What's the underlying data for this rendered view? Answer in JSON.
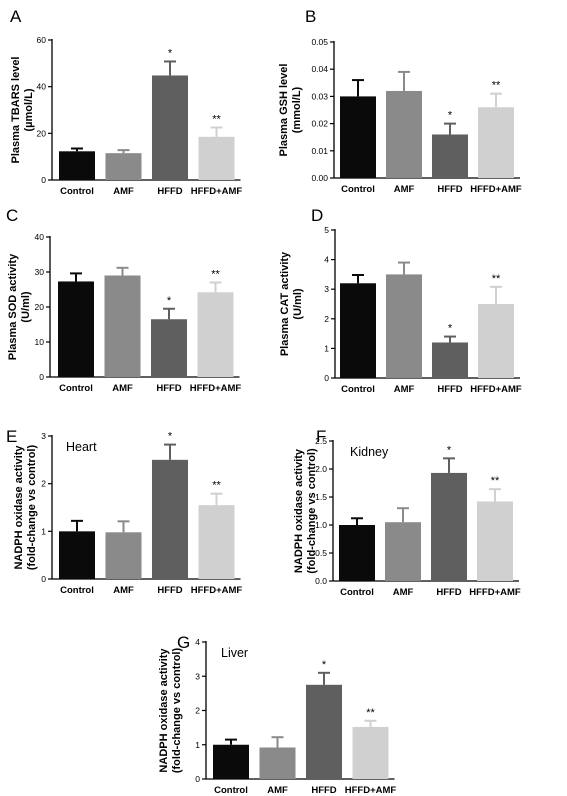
{
  "colors": {
    "Control": "#0a0a0a",
    "AMF": "#8a8a8a",
    "HFFD": "#5f5f5f",
    "HFFD+AMF": "#d0d0d0",
    "axis": "#000000"
  },
  "chart_data": [
    {
      "panel": "A",
      "type": "bar",
      "categories": [
        "Control",
        "AMF",
        "HFFD",
        "HFFD+AMF"
      ],
      "values": [
        12.3,
        11.5,
        44.8,
        18.5
      ],
      "errors": [
        1.2,
        1.3,
        6.0,
        4.0
      ],
      "significance": [
        "",
        "",
        "*",
        "**"
      ],
      "ylabel_lines": [
        "Plasma TBARS level",
        "(µmol/L)"
      ],
      "ylim": [
        0,
        60
      ],
      "yticks": [
        0,
        20,
        40,
        60
      ],
      "ytick_labels": [
        "0",
        "20",
        "40",
        "60"
      ],
      "inset_label": ""
    },
    {
      "panel": "B",
      "type": "bar",
      "categories": [
        "Control",
        "AMF",
        "HFFD",
        "HFFD+AMF"
      ],
      "values": [
        0.03,
        0.032,
        0.016,
        0.026
      ],
      "errors": [
        0.006,
        0.007,
        0.004,
        0.005
      ],
      "significance": [
        "",
        "",
        "*",
        "**"
      ],
      "ylabel_lines": [
        "Plasma  GSH level",
        "(mmol/L)"
      ],
      "ylim": [
        0,
        0.05
      ],
      "yticks": [
        0,
        0.01,
        0.02,
        0.03,
        0.04,
        0.05
      ],
      "ytick_labels": [
        "0.00",
        "0.01",
        "0.02",
        "0.03",
        "0.04",
        "0.05"
      ],
      "inset_label": ""
    },
    {
      "panel": "C",
      "type": "bar",
      "categories": [
        "Control",
        "AMF",
        "HFFD",
        "HFFD+AMF"
      ],
      "values": [
        27.3,
        29.0,
        16.5,
        24.2
      ],
      "errors": [
        2.3,
        2.2,
        3.0,
        2.8
      ],
      "significance": [
        "",
        "",
        "*",
        "**"
      ],
      "ylabel_lines": [
        "Plasma SOD activity",
        "(U/ml)"
      ],
      "ylim": [
        0,
        40
      ],
      "yticks": [
        0,
        10,
        20,
        30,
        40
      ],
      "ytick_labels": [
        "0",
        "10",
        "20",
        "30",
        "40"
      ],
      "inset_label": ""
    },
    {
      "panel": "D",
      "type": "bar",
      "categories": [
        "Control",
        "AMF",
        "HFFD",
        "HFFD+AMF"
      ],
      "values": [
        3.2,
        3.5,
        1.2,
        2.5
      ],
      "errors": [
        0.28,
        0.4,
        0.2,
        0.58
      ],
      "significance": [
        "",
        "",
        "*",
        "**"
      ],
      "ylabel_lines": [
        "Plasma CAT activity",
        "(U/ml)"
      ],
      "ylim": [
        0,
        5
      ],
      "yticks": [
        0,
        1,
        2,
        3,
        4,
        5
      ],
      "ytick_labels": [
        "0",
        "1",
        "2",
        "3",
        "4",
        "5"
      ],
      "inset_label": ""
    },
    {
      "panel": "E",
      "type": "bar",
      "categories": [
        "Control",
        "AMF",
        "HFFD",
        "HFFD+AMF"
      ],
      "values": [
        1.0,
        0.98,
        2.5,
        1.55
      ],
      "errors": [
        0.22,
        0.23,
        0.32,
        0.24
      ],
      "significance": [
        "",
        "",
        "*",
        "**"
      ],
      "ylabel_lines": [
        "NADPH oxidase activity",
        "(fold-change vs control)"
      ],
      "ylim": [
        0,
        3
      ],
      "yticks": [
        0,
        1,
        2,
        3
      ],
      "ytick_labels": [
        "0",
        "1",
        "2",
        "3"
      ],
      "inset_label": "Heart"
    },
    {
      "panel": "F",
      "type": "bar",
      "categories": [
        "Control",
        "AMF",
        "HFFD",
        "HFFD+AMF"
      ],
      "values": [
        1.0,
        1.05,
        1.93,
        1.42
      ],
      "errors": [
        0.12,
        0.25,
        0.26,
        0.22
      ],
      "significance": [
        "",
        "",
        "*",
        "**"
      ],
      "ylabel_lines": [
        "NADPH oxidase activity",
        "(fold-change vs control)"
      ],
      "ylim": [
        0,
        2.5
      ],
      "yticks": [
        0,
        0.5,
        1.0,
        1.5,
        2.0,
        2.5
      ],
      "ytick_labels": [
        "0.0",
        "0.5",
        "1.0",
        "1.5",
        "2.0",
        "2.5"
      ],
      "inset_label": "Kidney"
    },
    {
      "panel": "G",
      "type": "bar",
      "categories": [
        "Control",
        "AMF",
        "HFFD",
        "HFFD+AMF"
      ],
      "values": [
        1.0,
        0.92,
        2.75,
        1.52
      ],
      "errors": [
        0.15,
        0.3,
        0.35,
        0.18
      ],
      "significance": [
        "",
        "",
        "*",
        "**"
      ],
      "ylabel_lines": [
        "NADPH oxidase activity",
        "(fold-change vs control)"
      ],
      "ylim": [
        0,
        4
      ],
      "yticks": [
        0,
        1,
        2,
        3,
        4
      ],
      "ytick_labels": [
        "0",
        "1",
        "2",
        "3",
        "4"
      ],
      "inset_label": "Liver"
    }
  ]
}
